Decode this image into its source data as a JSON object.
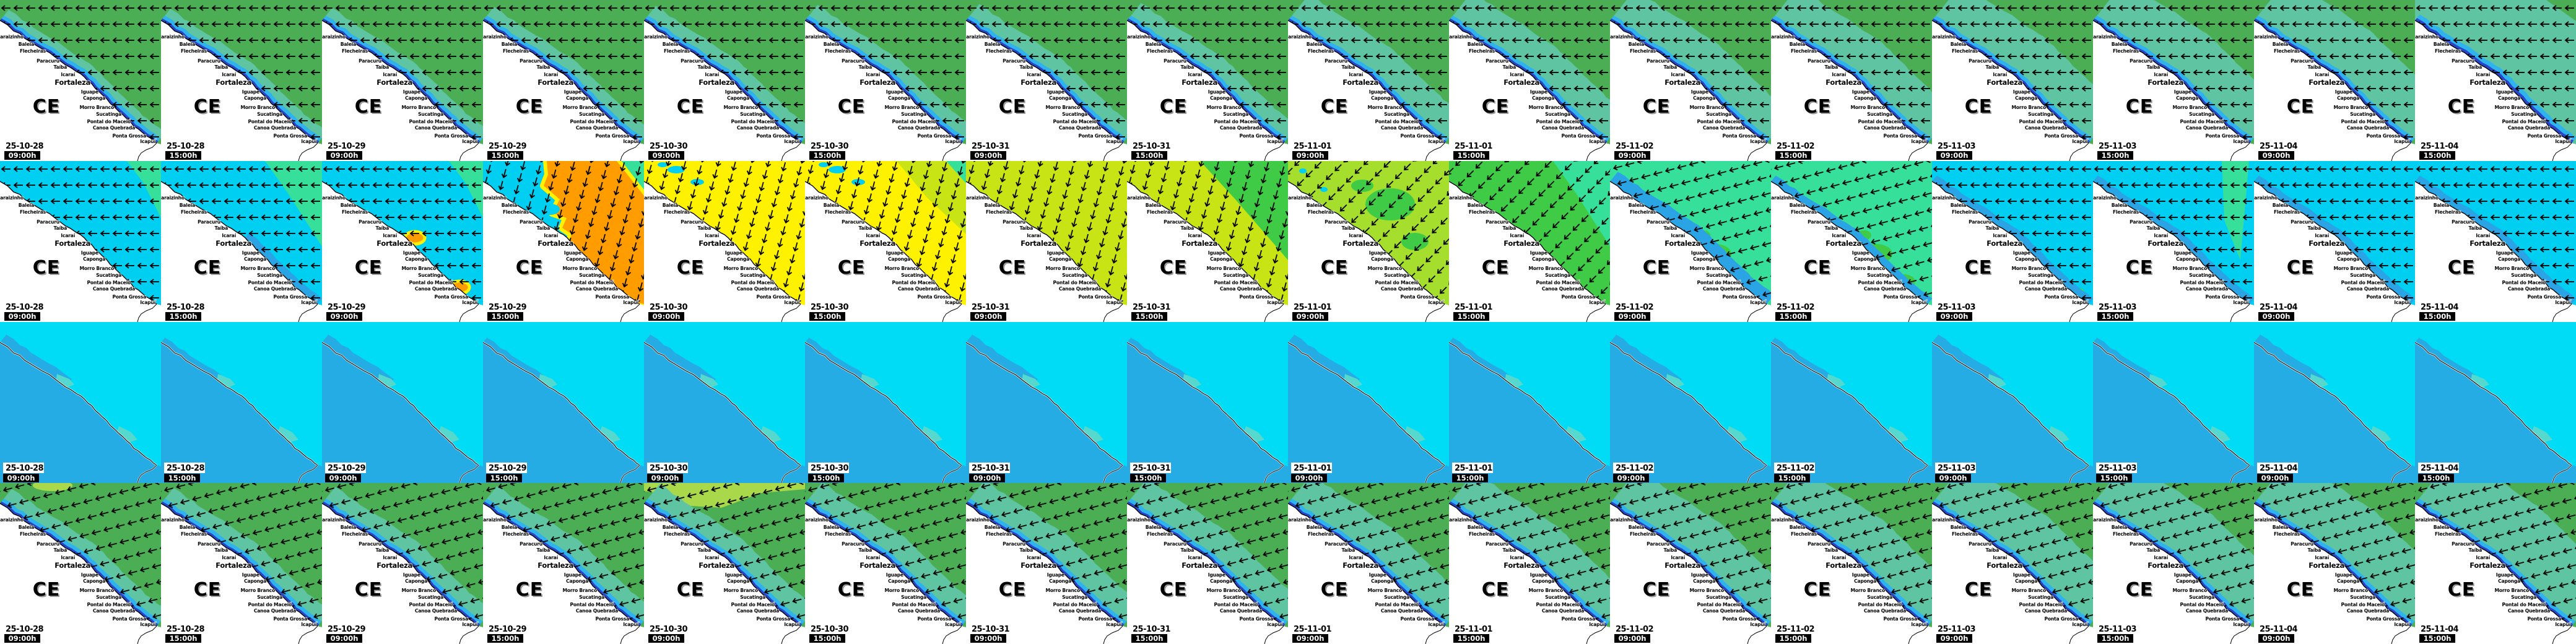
{
  "region": {
    "state_label": "CE"
  },
  "places": [
    "Icaraizinho",
    "Baleia",
    "Flecheiras",
    "Paracuru",
    "Taíba",
    "Icaraí",
    "Fortaleza",
    "Iguape",
    "Caponga",
    "Morro Branco",
    "Sucatinga",
    "Pontal do Maceió",
    "Canoa Quebrada",
    "Ponta Grossa",
    "Icapuí"
  ],
  "columns": [
    {
      "date": "25-10-28",
      "time": "09:00h"
    },
    {
      "date": "25-10-28",
      "time": "15:00h"
    },
    {
      "date": "25-10-29",
      "time": "09:00h"
    },
    {
      "date": "25-10-29",
      "time": "15:00h"
    },
    {
      "date": "25-10-30",
      "time": "09:00h"
    },
    {
      "date": "25-10-30",
      "time": "15:00h"
    },
    {
      "date": "25-10-31",
      "time": "09:00h"
    },
    {
      "date": "25-10-31",
      "time": "15:00h"
    },
    {
      "date": "25-11-01",
      "time": "09:00h"
    },
    {
      "date": "25-11-01",
      "time": "15:00h"
    },
    {
      "date": "25-11-02",
      "time": "09:00h"
    },
    {
      "date": "25-11-02",
      "time": "15:00h"
    },
    {
      "date": "25-11-03",
      "time": "09:00h"
    },
    {
      "date": "25-11-03",
      "time": "15:00h"
    },
    {
      "date": "25-11-04",
      "time": "09:00h"
    },
    {
      "date": "25-11-04",
      "time": "15:00h"
    }
  ],
  "colors": {
    "green": "#4CAE54",
    "teal": "#5FC4A1",
    "nearshore_cyan": "#2FB3EE",
    "navy": "#2A46C8",
    "land": "#FFFFFF",
    "coastline": "#000000",
    "cyan": "#00CFF2",
    "spring": "#36E09B",
    "orange": "#FF9C00",
    "yellow": "#FFF200",
    "yellow_green": "#C9E414",
    "lime": "#A6DE2D",
    "green2": "#3FCB45",
    "bright_green": "#3CE34A",
    "blue_band": "#2AA4E4",
    "r3_sea": "#00DCF6",
    "r3_land": "#25ACE4",
    "r3_teal": "#55D8CE",
    "yg_top": "#A9D84B",
    "arrow": "#000000"
  },
  "rows": [
    {
      "id": "row-1",
      "kind": "coastal",
      "tiles": [
        {
          "base": "green",
          "teal": 22,
          "cyan": 10,
          "navy": 4,
          "arrows": "aL",
          "accents": []
        },
        {
          "base": "green",
          "teal": 24,
          "cyan": 10,
          "navy": 4,
          "arrows": "aL",
          "accents": []
        },
        {
          "base": "green",
          "teal": 26,
          "cyan": 10,
          "navy": 4,
          "arrows": "aL",
          "accents": []
        },
        {
          "base": "green",
          "teal": 28,
          "cyan": 10,
          "navy": 4,
          "arrows": "aL",
          "accents": []
        },
        {
          "base": "green",
          "teal": 30,
          "cyan": 10,
          "navy": 4,
          "arrows": "aL",
          "accents": []
        },
        {
          "base": "green",
          "teal": 32,
          "cyan": 10,
          "navy": 4,
          "arrows": "aL",
          "accents": []
        },
        {
          "base": "green",
          "teal": 34,
          "cyan": 10,
          "navy": 4,
          "arrows": "aL",
          "accents": []
        },
        {
          "base": "green",
          "teal": 36,
          "cyan": 10,
          "navy": 4,
          "arrows": "aL",
          "accents": []
        },
        {
          "base": "green",
          "teal": 55,
          "cyan": 10,
          "navy": 4,
          "arrows": "aL",
          "accents": []
        },
        {
          "base": "green",
          "teal": 60,
          "cyan": 10,
          "navy": 4,
          "arrows": "aL",
          "accents": []
        },
        {
          "base": "green",
          "teal": 65,
          "cyan": 10,
          "navy": 4,
          "arrows": "aL",
          "accents": []
        },
        {
          "base": "green",
          "teal": 70,
          "cyan": 10,
          "navy": 4,
          "arrows": "aL",
          "accents": []
        },
        {
          "base": "green",
          "teal": 78,
          "cyan": 10,
          "navy": 4,
          "arrows": "aL",
          "accents": []
        },
        {
          "base": "green",
          "teal": 84,
          "cyan": 10,
          "navy": 4,
          "arrows": "aL",
          "accents": []
        },
        {
          "base": "green",
          "teal": 90,
          "cyan": 10,
          "navy": 4,
          "arrows": "aL",
          "accents": []
        },
        {
          "base": "teal",
          "teal": 0,
          "cyan": 12,
          "navy": 5,
          "arrows": "aL",
          "accents": [
            "green-corner-sm"
          ]
        }
      ]
    },
    {
      "id": "row-2",
      "kind": "coastal",
      "tiles": [
        {
          "base": "cyan",
          "teal": 0,
          "cyan": 0,
          "navy": 0,
          "arrows": "aL",
          "accents": [
            "spring-corner-sm"
          ]
        },
        {
          "base": "cyan",
          "teal": 0,
          "cyan": 0,
          "navy": 0,
          "arrows": "aL",
          "accents": [
            "spring-corner-lg",
            "blue-coast-lower"
          ]
        },
        {
          "base": "cyan",
          "teal": 0,
          "cyan": 0,
          "navy": 0,
          "arrows": "aL",
          "accents": [
            "spring-corner-sm",
            "orange-spots"
          ]
        },
        {
          "base": "cyan",
          "teal": 0,
          "cyan": 0,
          "navy": 0,
          "arrows": "aD",
          "accents": [
            "spring-corner-sm",
            "orange-field"
          ]
        },
        {
          "base": "yellow",
          "teal": 0,
          "cyan": 0,
          "navy": 0,
          "arrows": "aD",
          "accents": [
            "cyan-specks"
          ]
        },
        {
          "base": "yellow",
          "teal": 0,
          "cyan": 0,
          "navy": 0,
          "arrows": "aD",
          "accents": [
            "yg-upper-right",
            "cyan-specks"
          ]
        },
        {
          "base": "yellow_green",
          "teal": 0,
          "cyan": 0,
          "navy": 0,
          "arrows": "aD",
          "accents": []
        },
        {
          "base": "yellow_green",
          "teal": 0,
          "cyan": 0,
          "navy": 0,
          "arrows": "aD",
          "accents": [
            "green-upper-right"
          ]
        },
        {
          "base": "lime",
          "teal": 0,
          "cyan": 0,
          "navy": 0,
          "arrows": "aDL",
          "accents": [
            "green-mid-patches"
          ]
        },
        {
          "base": "green2",
          "teal": 0,
          "cyan": 0,
          "navy": 0,
          "arrows": "aDL",
          "accents": [
            "spring-corner-lg"
          ]
        },
        {
          "base": "spring",
          "teal": 0,
          "cyan": 0,
          "navy": 0,
          "blueband": 20,
          "arrows": "aL15",
          "accents": [
            "green-coast-patches"
          ]
        },
        {
          "base": "spring",
          "teal": 0,
          "cyan": 0,
          "navy": 0,
          "blueband": 12,
          "arrows": "aL15",
          "accents": [
            "green-coast-patches"
          ]
        },
        {
          "base": "cyan",
          "teal": 0,
          "cyan": 0,
          "navy": 0,
          "blueband": 12,
          "arrows": "aL",
          "accents": [
            "green-spot-se"
          ]
        },
        {
          "base": "cyan",
          "teal": 0,
          "cyan": 0,
          "navy": 0,
          "blueband": 12,
          "arrows": "aL",
          "accents": [
            "spring-stripe-right"
          ]
        },
        {
          "base": "cyan",
          "teal": 0,
          "cyan": 0,
          "navy": 0,
          "blueband": 12,
          "arrows": "aL",
          "accents": []
        },
        {
          "base": "cyan",
          "teal": 0,
          "cyan": 0,
          "navy": 0,
          "blueband": 12,
          "arrows": "aL",
          "accents": []
        }
      ]
    },
    {
      "id": "row-3",
      "kind": "plain",
      "tiles": [
        {
          "band": 16
        },
        {
          "band": 10
        },
        {
          "band": 16
        },
        {
          "band": 10
        },
        {
          "band": 16
        },
        {
          "band": 10
        },
        {
          "band": 16
        },
        {
          "band": 10
        },
        {
          "band": 16
        },
        {
          "band": 10
        },
        {
          "band": 16
        },
        {
          "band": 10
        },
        {
          "band": 16
        },
        {
          "band": 10
        },
        {
          "band": 16
        },
        {
          "band": 10
        }
      ]
    },
    {
      "id": "row-4",
      "kind": "coastal",
      "tiles": [
        {
          "base": "green",
          "teal": 30,
          "cyan": 10,
          "navy": 4,
          "arrows": "aL15",
          "accents": [
            "yg-top-blob"
          ]
        },
        {
          "base": "green",
          "teal": 32,
          "cyan": 10,
          "navy": 4,
          "arrows": "aL15",
          "accents": []
        },
        {
          "base": "green",
          "teal": 34,
          "cyan": 10,
          "navy": 4,
          "arrows": "aL15",
          "accents": []
        },
        {
          "base": "green",
          "teal": 36,
          "cyan": 10,
          "navy": 4,
          "arrows": "aL15",
          "accents": []
        },
        {
          "base": "green",
          "teal": 40,
          "cyan": 10,
          "navy": 4,
          "arrows": "aL15",
          "accents": [
            "yg-top-band"
          ]
        },
        {
          "base": "green",
          "teal": 44,
          "cyan": 10,
          "navy": 4,
          "arrows": "aL15",
          "accents": []
        },
        {
          "base": "green",
          "teal": 48,
          "cyan": 10,
          "navy": 4,
          "arrows": "aL15",
          "accents": []
        },
        {
          "base": "green",
          "teal": 52,
          "cyan": 10,
          "navy": 4,
          "arrows": "aL15",
          "accents": []
        },
        {
          "base": "green",
          "teal": 60,
          "cyan": 10,
          "navy": 4,
          "arrows": "aL15",
          "accents": []
        },
        {
          "base": "green",
          "teal": 66,
          "cyan": 10,
          "navy": 4,
          "arrows": "aL15",
          "accents": []
        },
        {
          "base": "green",
          "teal": 72,
          "cyan": 10,
          "navy": 4,
          "arrows": "aL15",
          "accents": []
        },
        {
          "base": "green",
          "teal": 78,
          "cyan": 10,
          "navy": 4,
          "arrows": "aL15",
          "accents": []
        },
        {
          "base": "green",
          "teal": 86,
          "cyan": 10,
          "navy": 4,
          "arrows": "aL15",
          "accents": []
        },
        {
          "base": "green",
          "teal": 92,
          "cyan": 10,
          "navy": 4,
          "arrows": "aL15",
          "accents": []
        },
        {
          "base": "green",
          "teal": 98,
          "cyan": 10,
          "navy": 4,
          "arrows": "aL15",
          "accents": []
        },
        {
          "base": "green",
          "teal": 106,
          "cyan": 10,
          "navy": 4,
          "arrows": "aL15",
          "accents": []
        }
      ]
    }
  ]
}
